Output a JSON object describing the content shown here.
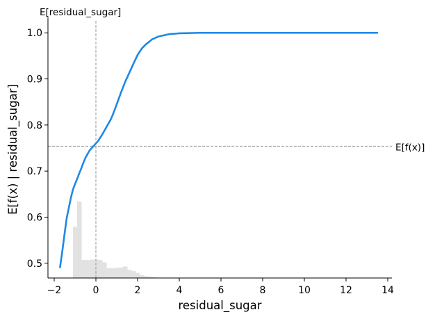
{
  "chart_data": {
    "type": "line",
    "title": "",
    "xlabel": "residual_sugar",
    "ylabel": "E[f(x) | residual_sugar]",
    "xlim": [
      -2.3,
      14.2
    ],
    "ylim": [
      0.468,
      1.026
    ],
    "xticks": [
      -2,
      0,
      2,
      4,
      6,
      8,
      10,
      12,
      14
    ],
    "xtick_labels": [
      "−2",
      "0",
      "2",
      "4",
      "6",
      "8",
      "10",
      "12",
      "14"
    ],
    "yticks": [
      0.5,
      0.6,
      0.7,
      0.8,
      0.9,
      1.0
    ],
    "ytick_labels": [
      "0.5",
      "0.6",
      "0.7",
      "0.8",
      "0.9",
      "1.0"
    ],
    "grid": false,
    "series": [
      {
        "color": "#1e88e5",
        "x": [
          -1.72,
          -1.6,
          -1.5,
          -1.4,
          -1.3,
          -1.2,
          -1.1,
          -1.0,
          -0.9,
          -0.8,
          -0.7,
          -0.6,
          -0.5,
          -0.4,
          -0.3,
          -0.2,
          -0.1,
          0.0,
          0.1,
          0.2,
          0.3,
          0.4,
          0.5,
          0.6,
          0.7,
          0.8,
          1.0,
          1.2,
          1.4,
          1.6,
          1.8,
          2.0,
          2.2,
          2.4,
          2.7,
          3.0,
          3.5,
          4.0,
          5.0,
          6.0,
          8.0,
          10.0,
          12.0,
          13.5
        ],
        "y": [
          0.491,
          0.53,
          0.565,
          0.598,
          0.62,
          0.642,
          0.66,
          0.672,
          0.683,
          0.695,
          0.706,
          0.718,
          0.729,
          0.737,
          0.745,
          0.75,
          0.755,
          0.76,
          0.765,
          0.772,
          0.779,
          0.787,
          0.795,
          0.803,
          0.811,
          0.821,
          0.845,
          0.87,
          0.893,
          0.913,
          0.933,
          0.952,
          0.966,
          0.975,
          0.986,
          0.992,
          0.997,
          0.999,
          1.0,
          1.0,
          1.0,
          1.0,
          1.0,
          1.0
        ]
      }
    ],
    "histogram": {
      "color": "#e2e2e2",
      "bins": [
        -1.1,
        -0.9,
        -0.7,
        -0.5,
        -0.3,
        -0.1,
        0.1,
        0.3,
        0.5,
        0.7,
        0.9,
        1.1,
        1.3,
        1.5,
        1.7,
        1.9,
        2.1,
        2.3,
        2.5,
        2.7,
        2.9
      ],
      "tops": [
        0.579,
        0.634,
        0.507,
        0.507,
        0.508,
        0.508,
        0.507,
        0.502,
        0.489,
        0.489,
        0.49,
        0.491,
        0.493,
        0.486,
        0.483,
        0.479,
        0.474,
        0.472,
        0.471,
        0.47
      ]
    },
    "reference_lines": {
      "x": 0.0,
      "x_label": "E[residual_sugar]",
      "y": 0.754,
      "y_label": "E[f(x)]",
      "color": "#999999"
    }
  }
}
